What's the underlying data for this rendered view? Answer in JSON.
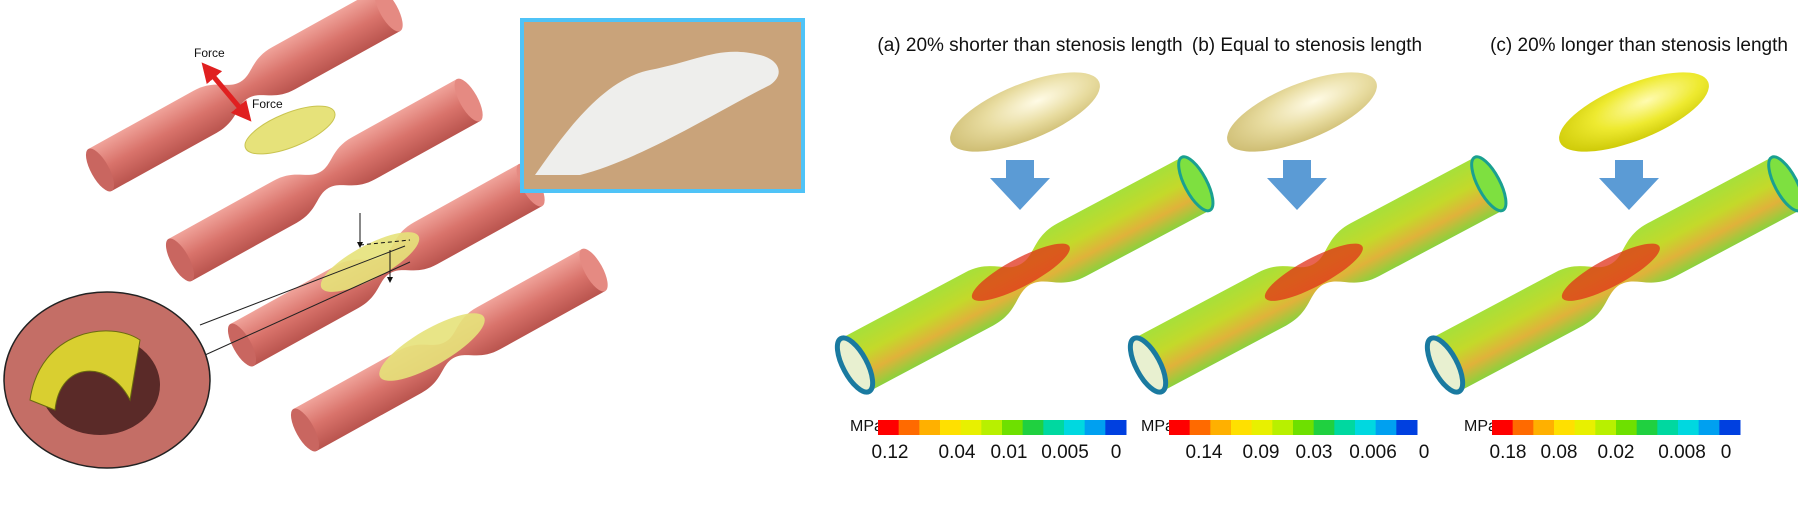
{
  "figure": {
    "force_labels": [
      "Force",
      "Force"
    ],
    "panels": [
      {
        "title": "(a) 20% shorter than stenosis length",
        "unit": "MPa",
        "scale": [
          0.12,
          0.04,
          0.01,
          0.005,
          0
        ]
      },
      {
        "title": "(b) Equal to stenosis length",
        "unit": "MPa",
        "scale": [
          0.14,
          0.09,
          0.03,
          0.006,
          0
        ]
      },
      {
        "title": "(c) 20% longer than stenosis length",
        "unit": "MPa",
        "scale": [
          0.18,
          0.08,
          0.02,
          0.008,
          0
        ]
      }
    ]
  }
}
